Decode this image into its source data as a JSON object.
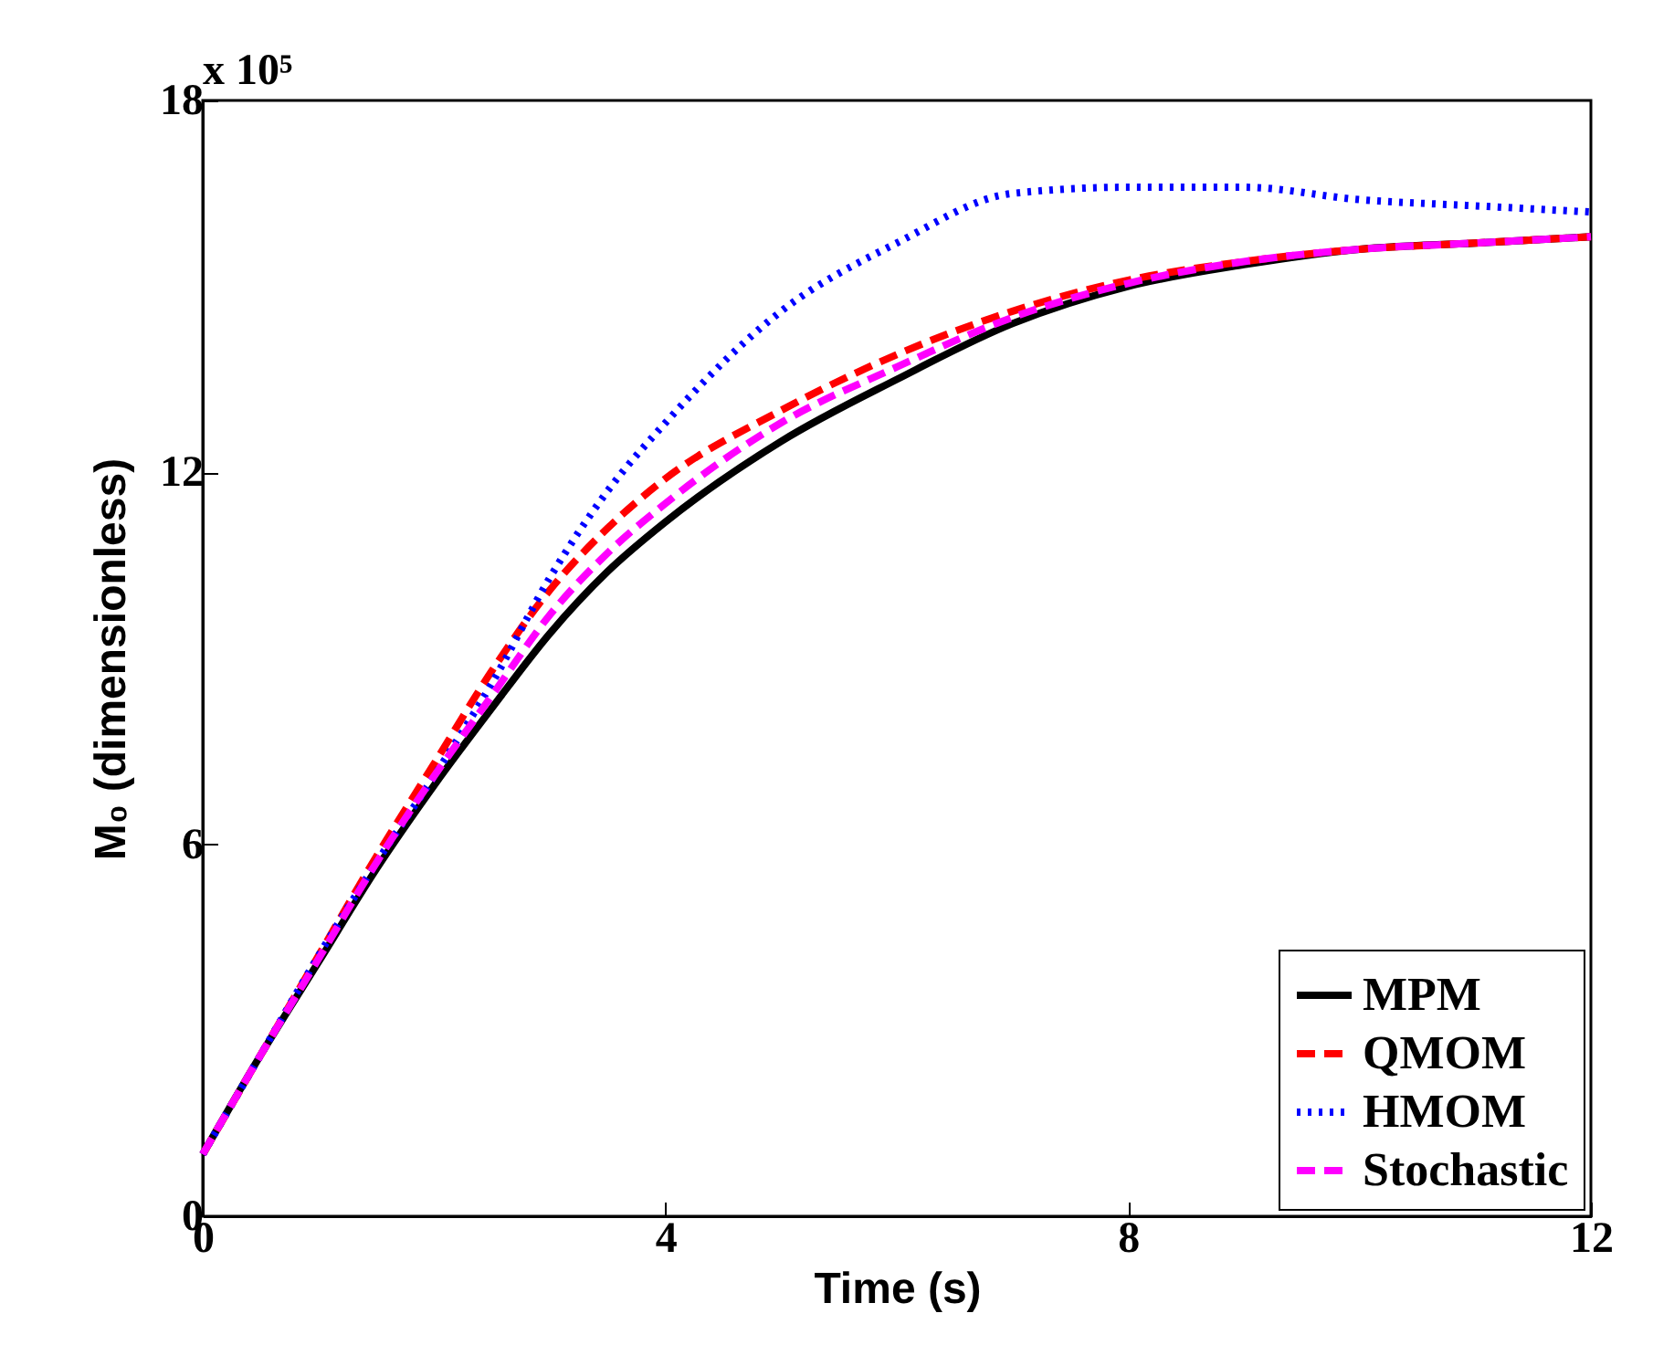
{
  "chart_data": {
    "type": "line",
    "xlabel": "Time (s)",
    "ylabel": "M₀ (dimensionless)",
    "annotations": [
      "x 10⁵"
    ],
    "x": [
      0,
      0.5,
      1,
      1.5,
      2,
      2.5,
      3,
      3.5,
      4,
      5,
      6,
      7,
      8,
      9,
      10,
      11,
      12
    ],
    "xlim": [
      0,
      12
    ],
    "xticks": [
      0,
      4,
      8,
      12
    ],
    "ylim": [
      0,
      18
    ],
    "yticks": [
      0,
      6,
      12,
      18
    ],
    "grid": false,
    "legend": "bottom right",
    "series": [
      {
        "name": "MPM",
        "color": "#000000",
        "line_style": "solid",
        "values": [
          1.0,
          2.6,
          4.1,
          5.6,
          6.95,
          8.2,
          9.4,
          10.4,
          11.2,
          12.5,
          13.5,
          14.4,
          15.0,
          15.35,
          15.6,
          15.7,
          15.8
        ]
      },
      {
        "name": "QMOM",
        "color": "#ff0000",
        "line_style": "dashed",
        "values": [
          1.0,
          2.6,
          4.2,
          5.8,
          7.3,
          8.8,
          10.1,
          11.1,
          11.9,
          13.0,
          13.9,
          14.6,
          15.1,
          15.4,
          15.6,
          15.7,
          15.8
        ]
      },
      {
        "name": "HMOM",
        "color": "#0000ff",
        "line_style": "dotted",
        "values": [
          1.0,
          2.6,
          4.2,
          5.7,
          7.1,
          8.6,
          10.3,
          11.7,
          12.8,
          14.6,
          15.7,
          16.5,
          16.6,
          16.6,
          16.4,
          16.3,
          16.2
        ]
      },
      {
        "name": "Stochastic",
        "color": "#ff00ff",
        "line_style": "dashed",
        "values": [
          1.0,
          2.6,
          4.15,
          5.7,
          7.1,
          8.4,
          9.7,
          10.7,
          11.5,
          12.8,
          13.7,
          14.5,
          15.05,
          15.4,
          15.6,
          15.7,
          15.8
        ]
      }
    ]
  }
}
